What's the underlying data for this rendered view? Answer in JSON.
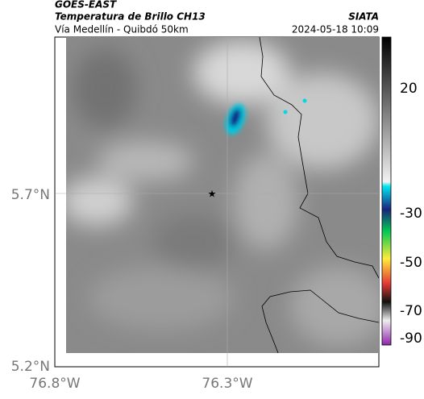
{
  "header": {
    "product": "GOES-EAST",
    "title": "Temperatura de Brillo CH13",
    "subtitle": "Vía Medellín - Quibdó 50km",
    "agency": "SIATA",
    "timestamp": "2024-05-18 10:09"
  },
  "axes": {
    "lat_labels": [
      "5.7°N",
      "5.2°N"
    ],
    "lon_labels": [
      "76.8°W",
      "76.3°W"
    ]
  },
  "colorbar": {
    "tick_labels": [
      20,
      -30,
      -50,
      -70,
      -90
    ]
  }
}
